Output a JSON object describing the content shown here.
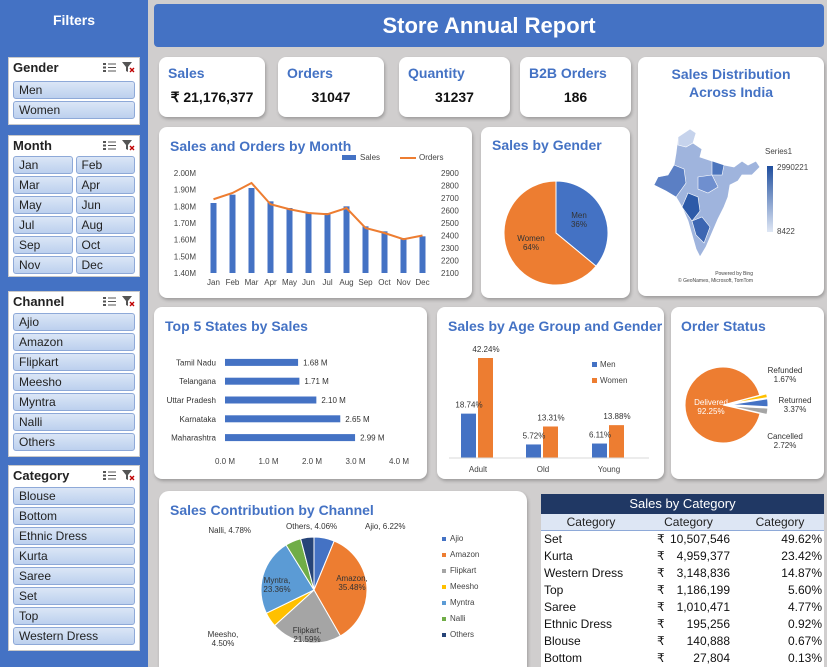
{
  "sidebar": {
    "title": "Filters",
    "slicers": [
      {
        "key": "gender",
        "label": "Gender",
        "layout": "list",
        "items": [
          "Men",
          "Women"
        ]
      },
      {
        "key": "month",
        "label": "Month",
        "layout": "grid",
        "items": [
          "Jan",
          "Feb",
          "Mar",
          "Apr",
          "May",
          "Jun",
          "Jul",
          "Aug",
          "Sep",
          "Oct",
          "Nov",
          "Dec"
        ]
      },
      {
        "key": "channel",
        "label": "Channel",
        "layout": "list",
        "items": [
          "Ajio",
          "Amazon",
          "Flipkart",
          "Meesho",
          "Myntra",
          "Nalli",
          "Others"
        ]
      },
      {
        "key": "category",
        "label": "Category",
        "layout": "list",
        "items": [
          "Blouse",
          "Bottom",
          "Ethnic Dress",
          "Kurta",
          "Saree",
          "Set",
          "Top",
          "Western Dress"
        ]
      }
    ]
  },
  "header": {
    "title": "Store Annual Report"
  },
  "kpis": [
    {
      "label": "Sales",
      "value": "₹ 21,176,377"
    },
    {
      "label": "Orders",
      "value": "31047"
    },
    {
      "label": "Quantity",
      "value": "31237"
    },
    {
      "label": "B2B Orders",
      "value": "186"
    }
  ],
  "map": {
    "title": "Sales Distribution Across India",
    "legend_title": "Series1",
    "legend_max": "2990221",
    "legend_min": "8422",
    "credit1": "Powered by Bing",
    "credit2": "© GeoNames, Microsoft, TomTom",
    "colors": {
      "dark": "#1f4e9e",
      "light": "#dfe7f5"
    }
  },
  "table": {
    "title": "Sales by Category",
    "headers": [
      "Category",
      "Category",
      "Category"
    ],
    "currency": "₹",
    "rows": [
      {
        "name": "Set",
        "amount": "10,507,546",
        "pct": "49.62%"
      },
      {
        "name": "Kurta",
        "amount": "4,959,377",
        "pct": "23.42%"
      },
      {
        "name": "Western Dress",
        "amount": "3,148,836",
        "pct": "14.87%"
      },
      {
        "name": "Top",
        "amount": "1,186,199",
        "pct": "5.60%"
      },
      {
        "name": "Saree",
        "amount": "1,010,471",
        "pct": "4.77%"
      },
      {
        "name": "Ethnic Dress",
        "amount": "195,256",
        "pct": "0.92%"
      },
      {
        "name": "Blouse",
        "amount": "140,888",
        "pct": "0.67%"
      },
      {
        "name": "Bottom",
        "amount": "27,804",
        "pct": "0.13%"
      }
    ]
  },
  "colors": {
    "blue": "#4472c4",
    "orange": "#ed7d31",
    "navy": "#203864",
    "gray": "#a5a5a5",
    "gold": "#ffc000",
    "lightblue": "#5b9bd5",
    "green": "#70ad47",
    "darkblue": "#264478"
  },
  "chart_data": [
    {
      "id": "monthly",
      "type": "bar+line",
      "title": "Sales and Orders by Month",
      "categories": [
        "Jan",
        "Feb",
        "Mar",
        "Apr",
        "May",
        "Jun",
        "Jul",
        "Aug",
        "Sep",
        "Oct",
        "Nov",
        "Dec"
      ],
      "series": [
        {
          "name": "Sales",
          "type": "bar",
          "axis": "left",
          "values": [
            1.82,
            1.87,
            1.91,
            1.83,
            1.79,
            1.76,
            1.76,
            1.8,
            1.68,
            1.65,
            1.61,
            1.62
          ]
        },
        {
          "name": "Orders",
          "type": "line",
          "axis": "right",
          "values": [
            2690,
            2740,
            2820,
            2650,
            2610,
            2580,
            2570,
            2620,
            2460,
            2420,
            2370,
            2400
          ]
        }
      ],
      "ylim_left": [
        1.4,
        2.0
      ],
      "yticks_left": [
        "1.40M",
        "1.50M",
        "1.60M",
        "1.70M",
        "1.80M",
        "1.90M",
        "2.00M"
      ],
      "ylim_right": [
        2100,
        2900
      ],
      "yticks_right": [
        "2100",
        "2200",
        "2300",
        "2400",
        "2500",
        "2600",
        "2700",
        "2800",
        "2900"
      ],
      "legend": "top-right"
    },
    {
      "id": "gender",
      "type": "pie",
      "title": "Sales by Gender",
      "slices": [
        {
          "name": "Men",
          "value": 36,
          "label": "Men\n36%"
        },
        {
          "name": "Women",
          "value": 64,
          "label": "Women\n64%"
        }
      ]
    },
    {
      "id": "states",
      "type": "bar",
      "orientation": "horizontal",
      "title": "Top 5 States by Sales",
      "categories": [
        "Tamil Nadu",
        "Telangana",
        "Uttar Pradesh",
        "Karnataka",
        "Maharashtra"
      ],
      "values": [
        1.68,
        1.71,
        2.1,
        2.65,
        2.99
      ],
      "labels": [
        "1.68 M",
        "1.71 M",
        "2.10 M",
        "2.65 M",
        "2.99 M"
      ],
      "xlim": [
        0,
        4
      ],
      "xticks": [
        "0.0 M",
        "1.0 M",
        "2.0 M",
        "3.0 M",
        "4.0 M"
      ]
    },
    {
      "id": "age",
      "type": "bar",
      "title": "Sales by Age Group and Gender",
      "categories": [
        "Adult",
        "Old",
        "Young"
      ],
      "series": [
        {
          "name": "Men",
          "values": [
            18.74,
            5.72,
            6.11
          ],
          "labels": [
            "18.74%",
            "5.72%",
            "6.11%"
          ]
        },
        {
          "name": "Women",
          "values": [
            42.24,
            13.31,
            13.88
          ],
          "labels": [
            "42.24%",
            "13.31%",
            "13.88%"
          ]
        }
      ],
      "legend": "right"
    },
    {
      "id": "status",
      "type": "pie",
      "title": "Order Status",
      "slices": [
        {
          "name": "Delivered",
          "value": 92.25
        },
        {
          "name": "Refunded",
          "value": 1.67
        },
        {
          "name": "Returned",
          "value": 3.37
        },
        {
          "name": "Cancelled",
          "value": 2.72
        }
      ],
      "labels": {
        "Delivered": "Delivered\n92.25%",
        "Refunded": "Refunded\n1.67%",
        "Returned": "Returned\n3.37%",
        "Cancelled": "Cancelled\n2.72%"
      }
    },
    {
      "id": "channel",
      "type": "pie",
      "title": "Sales Contribution by Channel",
      "slices": [
        {
          "name": "Ajio",
          "value": 6.22,
          "label": "Ajio, 6.22%"
        },
        {
          "name": "Amazon",
          "value": 35.48,
          "label": "Amazon,\n35.48%"
        },
        {
          "name": "Flipkart",
          "value": 21.59,
          "label": "Flipkart,\n21.59%"
        },
        {
          "name": "Meesho",
          "value": 4.5,
          "label": "Meesho,\n4.50%"
        },
        {
          "name": "Myntra",
          "value": 23.36,
          "label": "Myntra,\n23.36%"
        },
        {
          "name": "Nalli",
          "value": 4.78,
          "label": "Nalli, 4.78%"
        },
        {
          "name": "Others",
          "value": 4.06,
          "label": "Others, 4.06%"
        }
      ],
      "legend": "right"
    }
  ]
}
